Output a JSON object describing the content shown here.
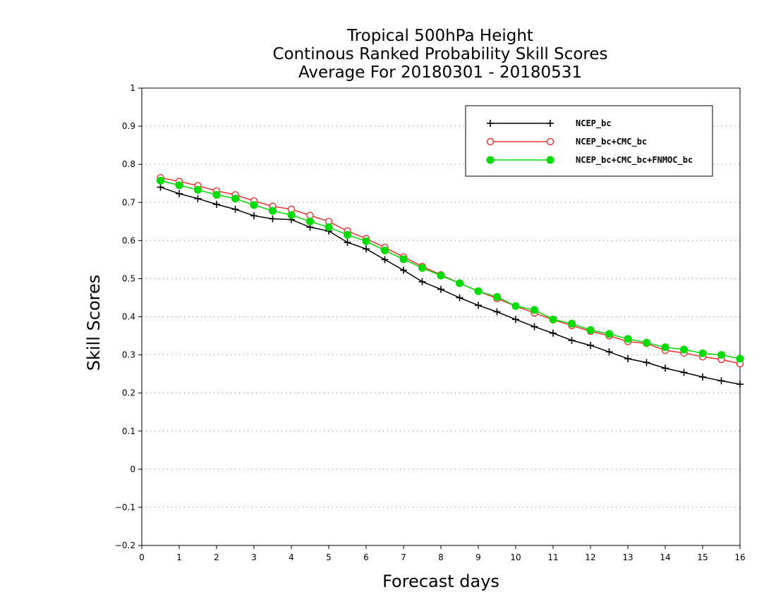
{
  "chart_data": {
    "type": "line",
    "title_lines": [
      "Tropical 500hPa Height",
      "Continous Ranked Probability Skill Scores",
      "Average For 20180301 - 20180531"
    ],
    "xlabel": "Forecast days",
    "ylabel": "Skill Scores",
    "xlim": [
      0,
      16
    ],
    "ylim": [
      -0.2,
      1
    ],
    "xticks": [
      "0",
      "1",
      "2",
      "3",
      "4",
      "5",
      "6",
      "7",
      "8",
      "9",
      "10",
      "11",
      "12",
      "13",
      "14",
      "15",
      "16"
    ],
    "yticks": [
      "−0.2",
      "−0.1",
      "0",
      "0.1",
      "0.2",
      "0.3",
      "0.4",
      "0.5",
      "0.6",
      "0.7",
      "0.8",
      "0.9",
      "1"
    ],
    "grid": "horizontal dotted",
    "legend_position": "top-right",
    "x": [
      0.5,
      1,
      1.5,
      2,
      2.5,
      3,
      3.5,
      4,
      4.5,
      5,
      5.5,
      6,
      6.5,
      7,
      7.5,
      8,
      8.5,
      9,
      9.5,
      10,
      10.5,
      11,
      11.5,
      12,
      12.5,
      13,
      13.5,
      14,
      14.5,
      15,
      15.5,
      16
    ],
    "series": [
      {
        "name": "NCEP_bc",
        "color": "#000000",
        "marker": "plus",
        "values": [
          0.74,
          0.723,
          0.71,
          0.695,
          0.682,
          0.665,
          0.657,
          0.655,
          0.635,
          0.625,
          0.595,
          0.578,
          0.55,
          0.522,
          0.492,
          0.472,
          0.45,
          0.43,
          0.413,
          0.393,
          0.374,
          0.357,
          0.338,
          0.325,
          0.308,
          0.29,
          0.28,
          0.265,
          0.254,
          0.242,
          0.232,
          0.223
        ]
      },
      {
        "name": "NCEP_bc+CMC_bc",
        "color": "#ee3333",
        "marker": "open-circle",
        "values": [
          0.765,
          0.755,
          0.744,
          0.73,
          0.72,
          0.704,
          0.69,
          0.682,
          0.666,
          0.65,
          0.625,
          0.605,
          0.582,
          0.557,
          0.532,
          0.51,
          0.488,
          0.467,
          0.448,
          0.428,
          0.41,
          0.392,
          0.377,
          0.362,
          0.35,
          0.335,
          0.33,
          0.312,
          0.305,
          0.295,
          0.288,
          0.277
        ]
      },
      {
        "name": "NCEP_bc+CMC_bc+FNMOC_bc",
        "color": "#00dd00",
        "marker": "filled-circle",
        "values": [
          0.757,
          0.745,
          0.733,
          0.72,
          0.71,
          0.693,
          0.678,
          0.667,
          0.65,
          0.635,
          0.615,
          0.598,
          0.574,
          0.551,
          0.528,
          0.508,
          0.488,
          0.467,
          0.452,
          0.428,
          0.418,
          0.393,
          0.382,
          0.365,
          0.355,
          0.342,
          0.332,
          0.32,
          0.314,
          0.304,
          0.3,
          0.29
        ]
      }
    ]
  }
}
